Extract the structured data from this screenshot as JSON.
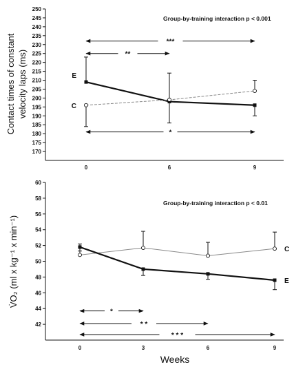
{
  "colors": {
    "ink": "#111111",
    "series_c": "#888888",
    "background": "#ffffff"
  },
  "chart_data": [
    {
      "type": "line",
      "title": "",
      "annotation": "Group-by-training interaction p < 0.001",
      "ylabel_line1": "Contact times of constant",
      "ylabel_line2": "velocity laps (ms)",
      "xlabel": "",
      "x": [
        0,
        6,
        9
      ],
      "x_tick_labels": [
        "0",
        "6",
        "9"
      ],
      "ylim": [
        165,
        250
      ],
      "y_ticks": [
        170,
        175,
        180,
        185,
        190,
        195,
        200,
        205,
        210,
        215,
        220,
        225,
        230,
        235,
        240,
        245,
        250
      ],
      "series": [
        {
          "name": "E",
          "values": [
            209,
            198,
            196
          ],
          "error_up": [
            14,
            0,
            0
          ],
          "error_down": [
            0,
            0,
            6
          ],
          "marker": "filled-square",
          "line": "solid-bold"
        },
        {
          "name": "C",
          "values": [
            196,
            199,
            204
          ],
          "error_up": [
            0,
            15,
            6
          ],
          "error_down": [
            12,
            13,
            0
          ],
          "marker": "open-circle",
          "line": "dashed"
        }
      ],
      "significance": [
        {
          "label": "***",
          "from": 0,
          "to": 9,
          "y": 232
        },
        {
          "label": "**",
          "from": 0,
          "to": 6,
          "y": 225
        },
        {
          "label": "*",
          "from": 0,
          "to": 9,
          "y": 181
        }
      ],
      "grid": false
    },
    {
      "type": "line",
      "title": "",
      "annotation": "Group-by-training interaction p < 0.01",
      "ylabel_line1": "V̇O₂ (ml x kg⁻¹ x min⁻¹)",
      "xlabel": "Weeks",
      "x": [
        0,
        3,
        6,
        9
      ],
      "x_tick_labels": [
        "0",
        "3",
        "6",
        "9"
      ],
      "ylim": [
        40,
        60
      ],
      "y_ticks": [
        42,
        44,
        46,
        48,
        50,
        52,
        54,
        56,
        58,
        60
      ],
      "series": [
        {
          "name": "C",
          "values": [
            50.8,
            51.7,
            50.7,
            51.6
          ],
          "error_up": [
            1.4,
            2.1,
            1.7,
            2.1
          ],
          "marker": "open-circle",
          "line": "thin"
        },
        {
          "name": "E",
          "values": [
            51.8,
            49.0,
            48.4,
            47.6
          ],
          "error_down": [
            0.5,
            0.8,
            0.7,
            1.2
          ],
          "marker": "filled-square",
          "line": "solid-bold"
        }
      ],
      "significance": [
        {
          "label": "*",
          "from": 0,
          "to": 3,
          "y": 43.7
        },
        {
          "label": "* *",
          "from": 0,
          "to": 6,
          "y": 42.1
        },
        {
          "label": "* * *",
          "from": 0,
          "to": 9,
          "y": 40.7
        }
      ],
      "grid": false
    }
  ]
}
